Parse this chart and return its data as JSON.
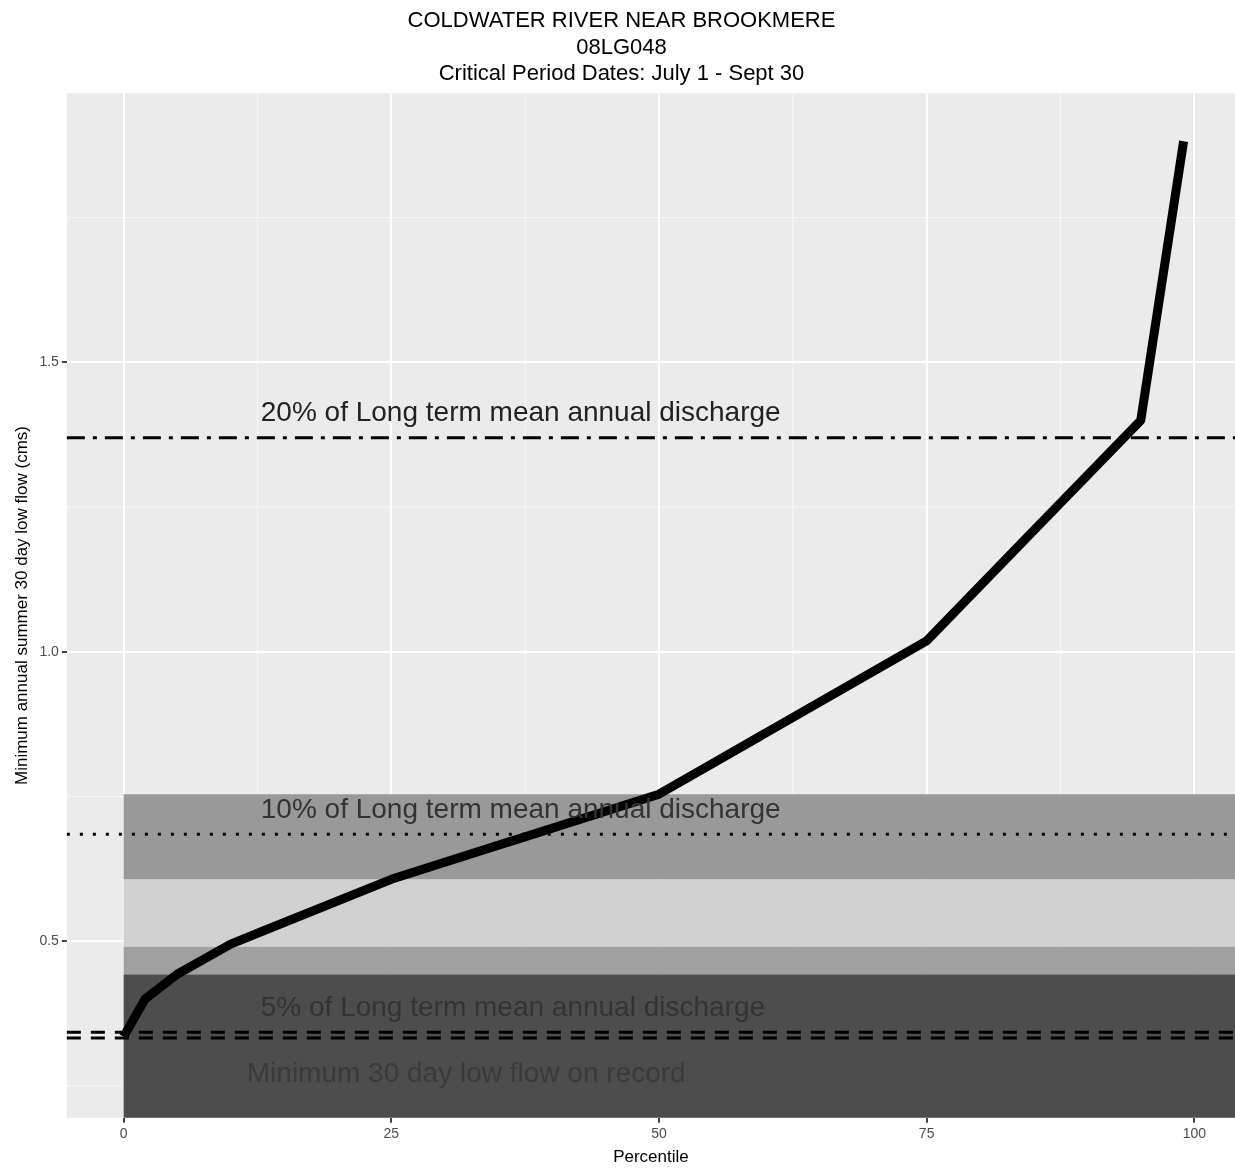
{
  "chart_data": {
    "type": "line",
    "title": "COLDWATER RIVER NEAR BROOKMERE",
    "subtitle": "08LG048\nCritical Period Dates: July 1 - Sept 30",
    "xlabel": "Percentile",
    "ylabel": "Minimum annual summer 30 day low flow (cms)",
    "x": [
      0,
      2,
      5,
      10,
      25,
      50,
      75,
      95,
      99
    ],
    "series": [
      {
        "color": "#000000",
        "values": [
          0.335,
          0.4,
          0.443,
          0.495,
          0.607,
          0.754,
          1.019,
          1.4,
          1.882
        ]
      }
    ],
    "xlim": [
      -5.3,
      103.8
    ],
    "xticks": [
      0,
      25,
      50,
      75,
      100
    ],
    "ylim": [
      0.195,
      1.965
    ],
    "yticks": [
      {
        "value": 0.5,
        "label": "0.5"
      },
      {
        "value": 1,
        "label": "1.0"
      },
      {
        "value": 1.5,
        "label": "1.5"
      }
    ],
    "bands": [
      {
        "axis": "y",
        "from": 0.195,
        "to": 0.443,
        "color": "#4d4d4d"
      },
      {
        "axis": "y",
        "from": 0.443,
        "to": 0.491,
        "color": "#a0a0a0"
      },
      {
        "axis": "y",
        "from": 0.491,
        "to": 0.607,
        "color": "#d0d0d0"
      },
      {
        "axis": "y",
        "from": 0.607,
        "to": 0.754,
        "color": "#999999"
      }
    ],
    "ref_lines": [
      {
        "axis": "y",
        "value": 1.37,
        "color": "#000000",
        "line_style": "dashdot",
        "label": "20% of Long term mean annual discharge"
      },
      {
        "axis": "y",
        "value": 0.685,
        "color": "#000000",
        "line_style": "dotted",
        "label": "10% of Long term mean annual discharge"
      },
      {
        "axis": "y",
        "value": 0.343,
        "color": "#000000",
        "line_style": "dashed",
        "label": "5% of Long term mean annual discharge"
      },
      {
        "axis": "y",
        "value": 0.333,
        "color": "#000000",
        "line_style": "dashed",
        "label": "Minimum 30 day low flow on record"
      }
    ],
    "grid": true,
    "legend": false,
    "marker": "none",
    "line_style": "solid"
  }
}
